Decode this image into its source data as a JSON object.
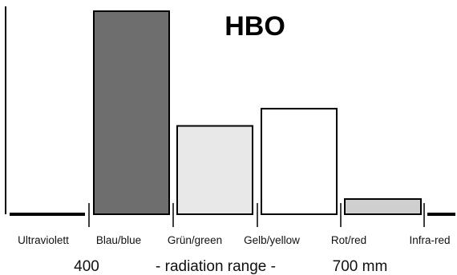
{
  "chart_data": {
    "type": "bar",
    "title": "HBO",
    "categories": [
      "Ultraviolett",
      "Blau/blue",
      "Grün/green",
      "Gelb/yellow",
      "Rot/red",
      "Infra-red"
    ],
    "values": [
      0,
      100,
      43.5,
      52,
      7.5,
      0
    ],
    "series_colors": [
      "#000000",
      "#6e6e6e",
      "#e8e8e8",
      "#ffffff",
      "#cfcfcf",
      "#000000"
    ],
    "xlabel": "- radiation range -",
    "range_start_label": "400",
    "range_end_label": "700 mm",
    "ylim": [
      0,
      100
    ],
    "grid": false,
    "legend": "none"
  }
}
